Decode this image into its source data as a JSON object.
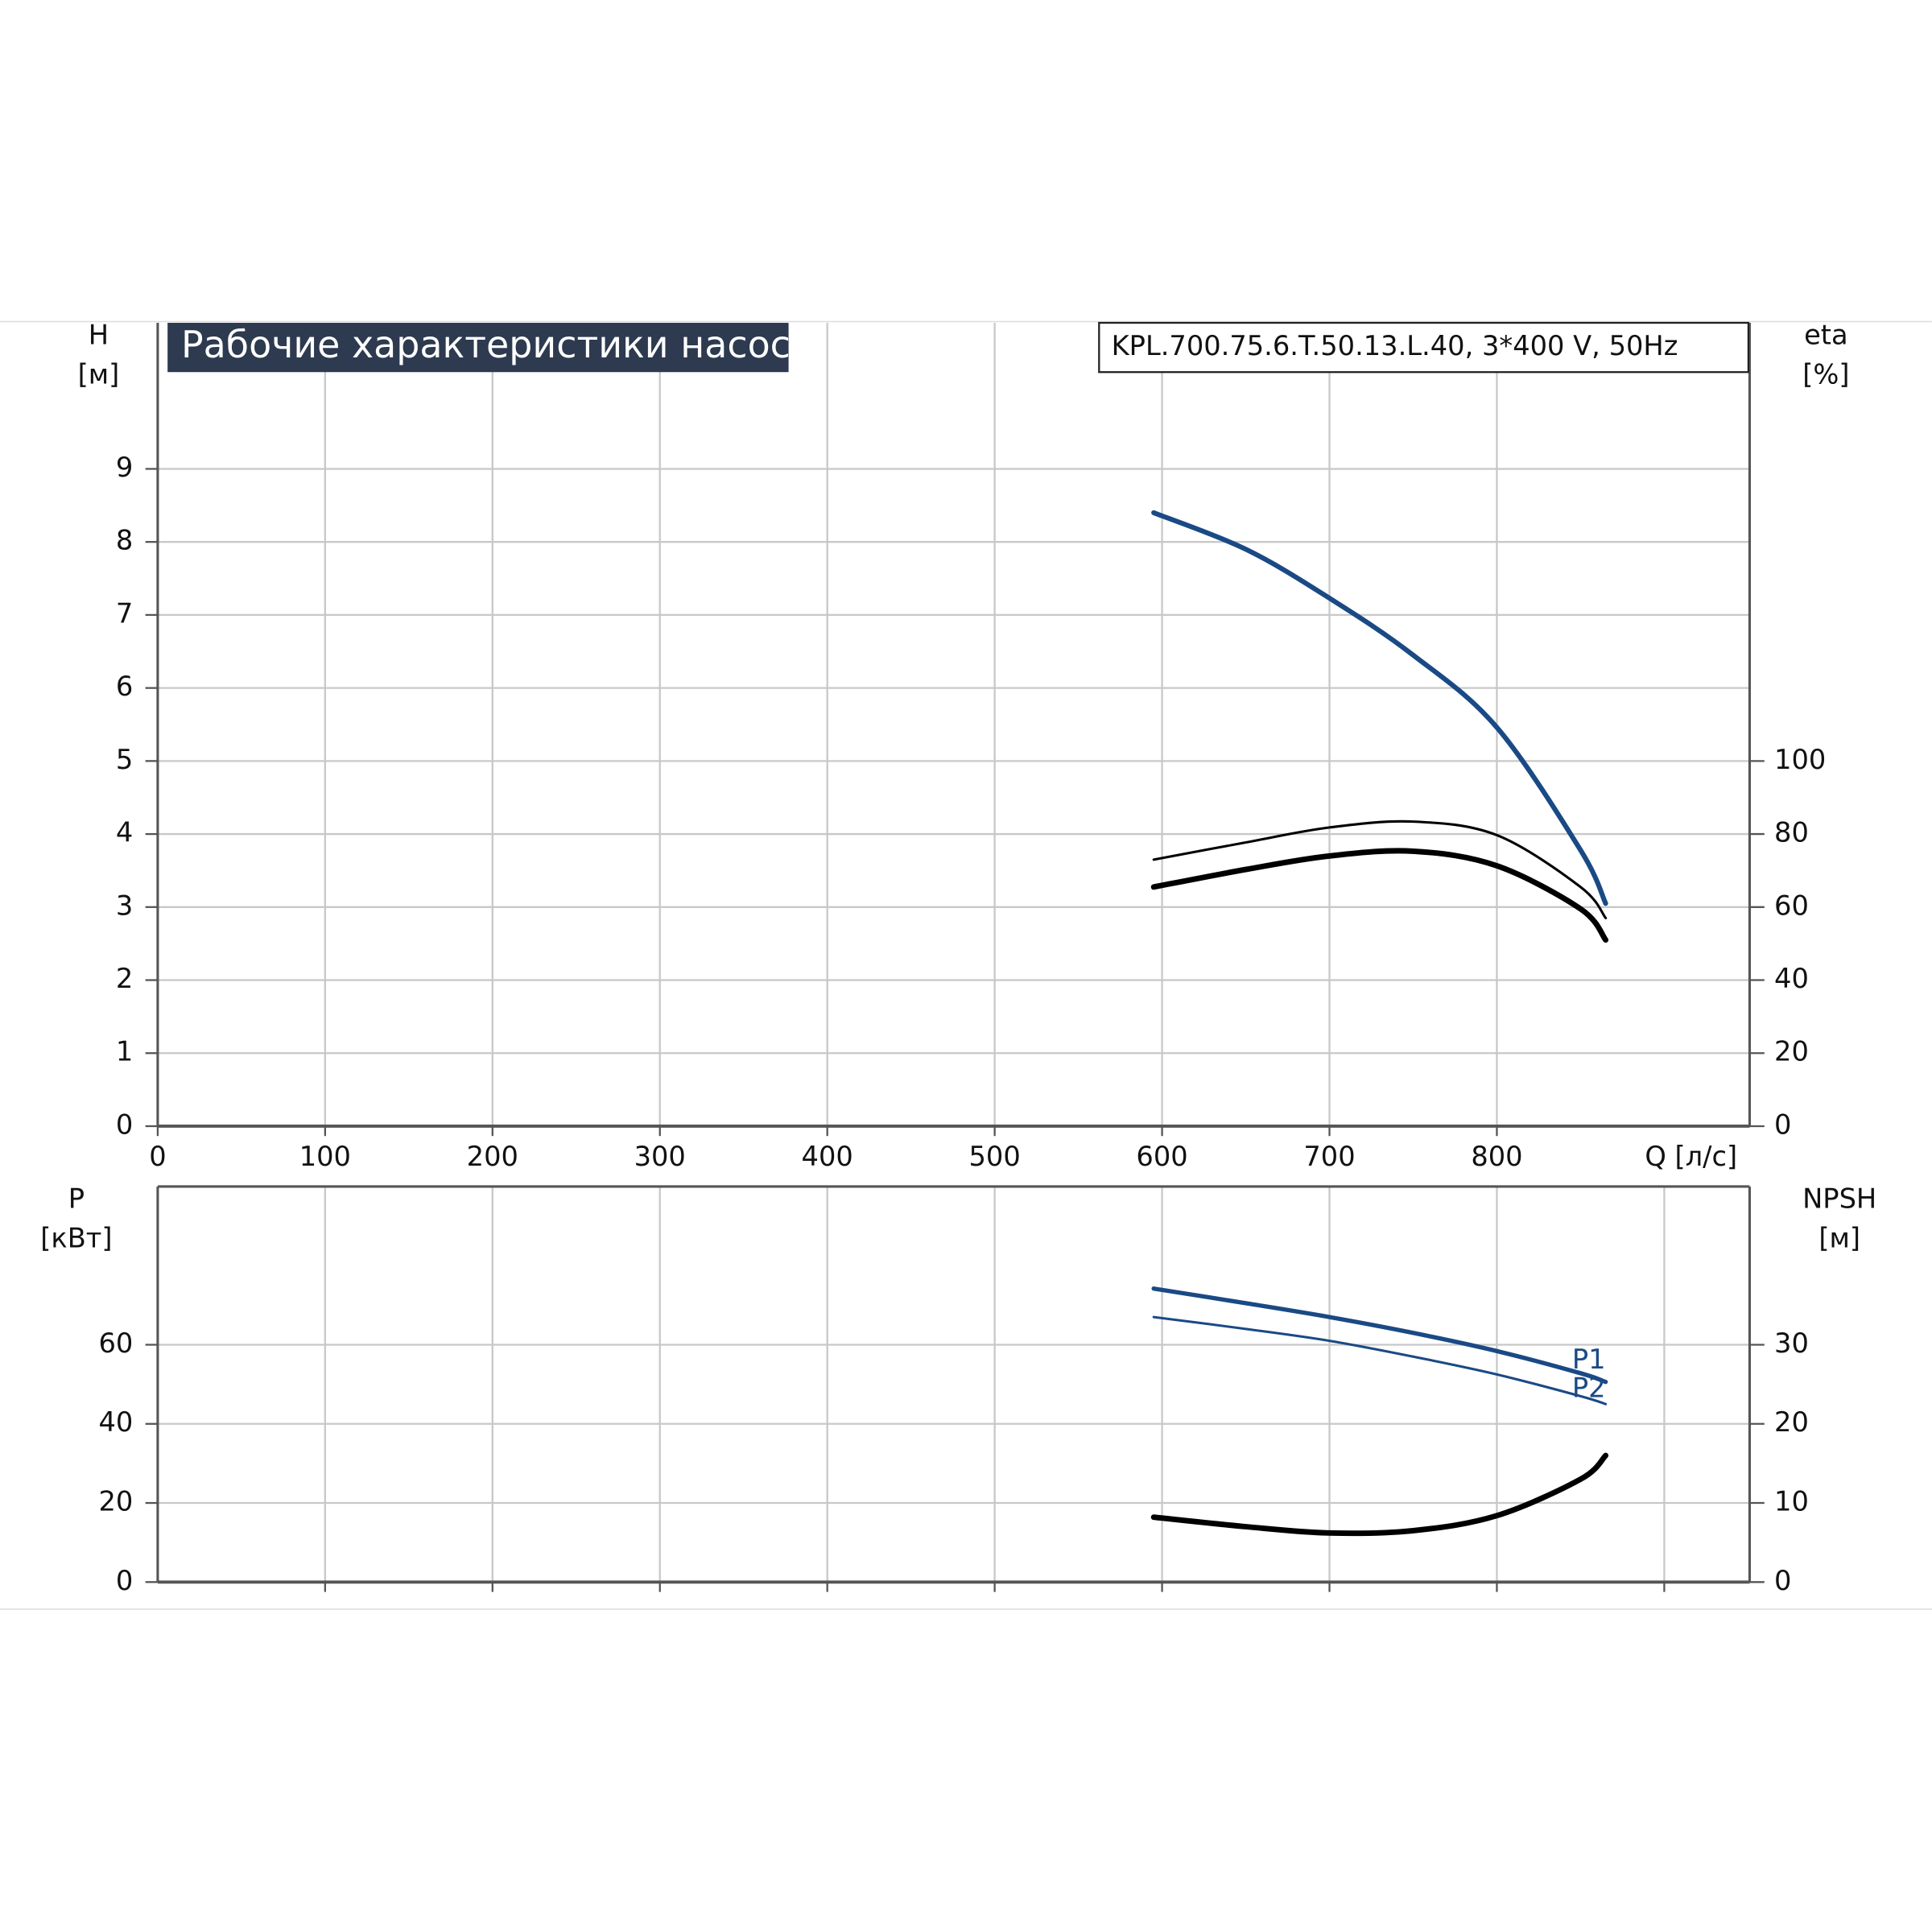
{
  "chart_data": [
    {
      "type": "line",
      "title": "Рабочие характеристики насоса",
      "subtitle": "KPL.700.75.6.T.50.13.L.40, 3*400 V, 50Hz",
      "x_label": "Q [л/с]",
      "y_label": [
        "H",
        "[м]"
      ],
      "y2_label": [
        "eta",
        "[%]"
      ],
      "xlim": [
        0,
        951
      ],
      "xticks": [
        0,
        100,
        200,
        300,
        400,
        500,
        600,
        700,
        800
      ],
      "ylim": [
        0,
        11
      ],
      "yticks": [
        0,
        1,
        2,
        3,
        4,
        5,
        6,
        7,
        8,
        9
      ],
      "y2lim": [
        0,
        220
      ],
      "y2ticks": [
        0,
        20,
        40,
        60,
        80,
        100
      ],
      "grid": true,
      "x": [
        595,
        650,
        700,
        750,
        800,
        850,
        865
      ],
      "series": [
        {
          "color": "#1a4a85",
          "line_width": 4,
          "values": [
            8.4,
            7.9,
            7.23,
            6.45,
            5.46,
            3.78,
            3.05
          ]
        },
        {
          "color": "#000000",
          "line_width": 2,
          "axis": "y2",
          "values": [
            73,
            77.7,
            81.8,
            83.4,
            79.7,
            65.5,
            57
          ]
        },
        {
          "color": "#000000",
          "line_width": 4.5,
          "axis": "y2",
          "values": [
            65.5,
            70.3,
            74,
            75.3,
            71.3,
            59.5,
            51
          ]
        }
      ]
    },
    {
      "type": "line",
      "y_label": [
        "P",
        "[кВт]"
      ],
      "y2_label": [
        "NPSH",
        "[м]"
      ],
      "xlim": [
        0,
        951
      ],
      "xticks": [
        100,
        200,
        300,
        400,
        500,
        600,
        700,
        800,
        900
      ],
      "ylim": [
        0,
        100
      ],
      "yticks": [
        0,
        20,
        40,
        60
      ],
      "y2lim": [
        0,
        50
      ],
      "y2ticks": [
        0,
        10,
        20,
        30
      ],
      "grid": true,
      "x": [
        595,
        650,
        700,
        750,
        800,
        850,
        865
      ],
      "series": [
        {
          "name": "P1",
          "color": "#1a4a85",
          "line_width": 3.5,
          "values": [
            74.2,
            70.5,
            67,
            63,
            58.4,
            52.8,
            50.6
          ]
        },
        {
          "name": "P2",
          "color": "#1a4a85",
          "line_width": 2,
          "values": [
            67,
            64,
            61,
            57,
            52.5,
            47,
            45
          ]
        },
        {
          "color": "#000000",
          "line_width": 4.5,
          "axis": "y2",
          "values": [
            8.2,
            7,
            6.2,
            6.5,
            8.4,
            13,
            16
          ]
        }
      ]
    }
  ]
}
